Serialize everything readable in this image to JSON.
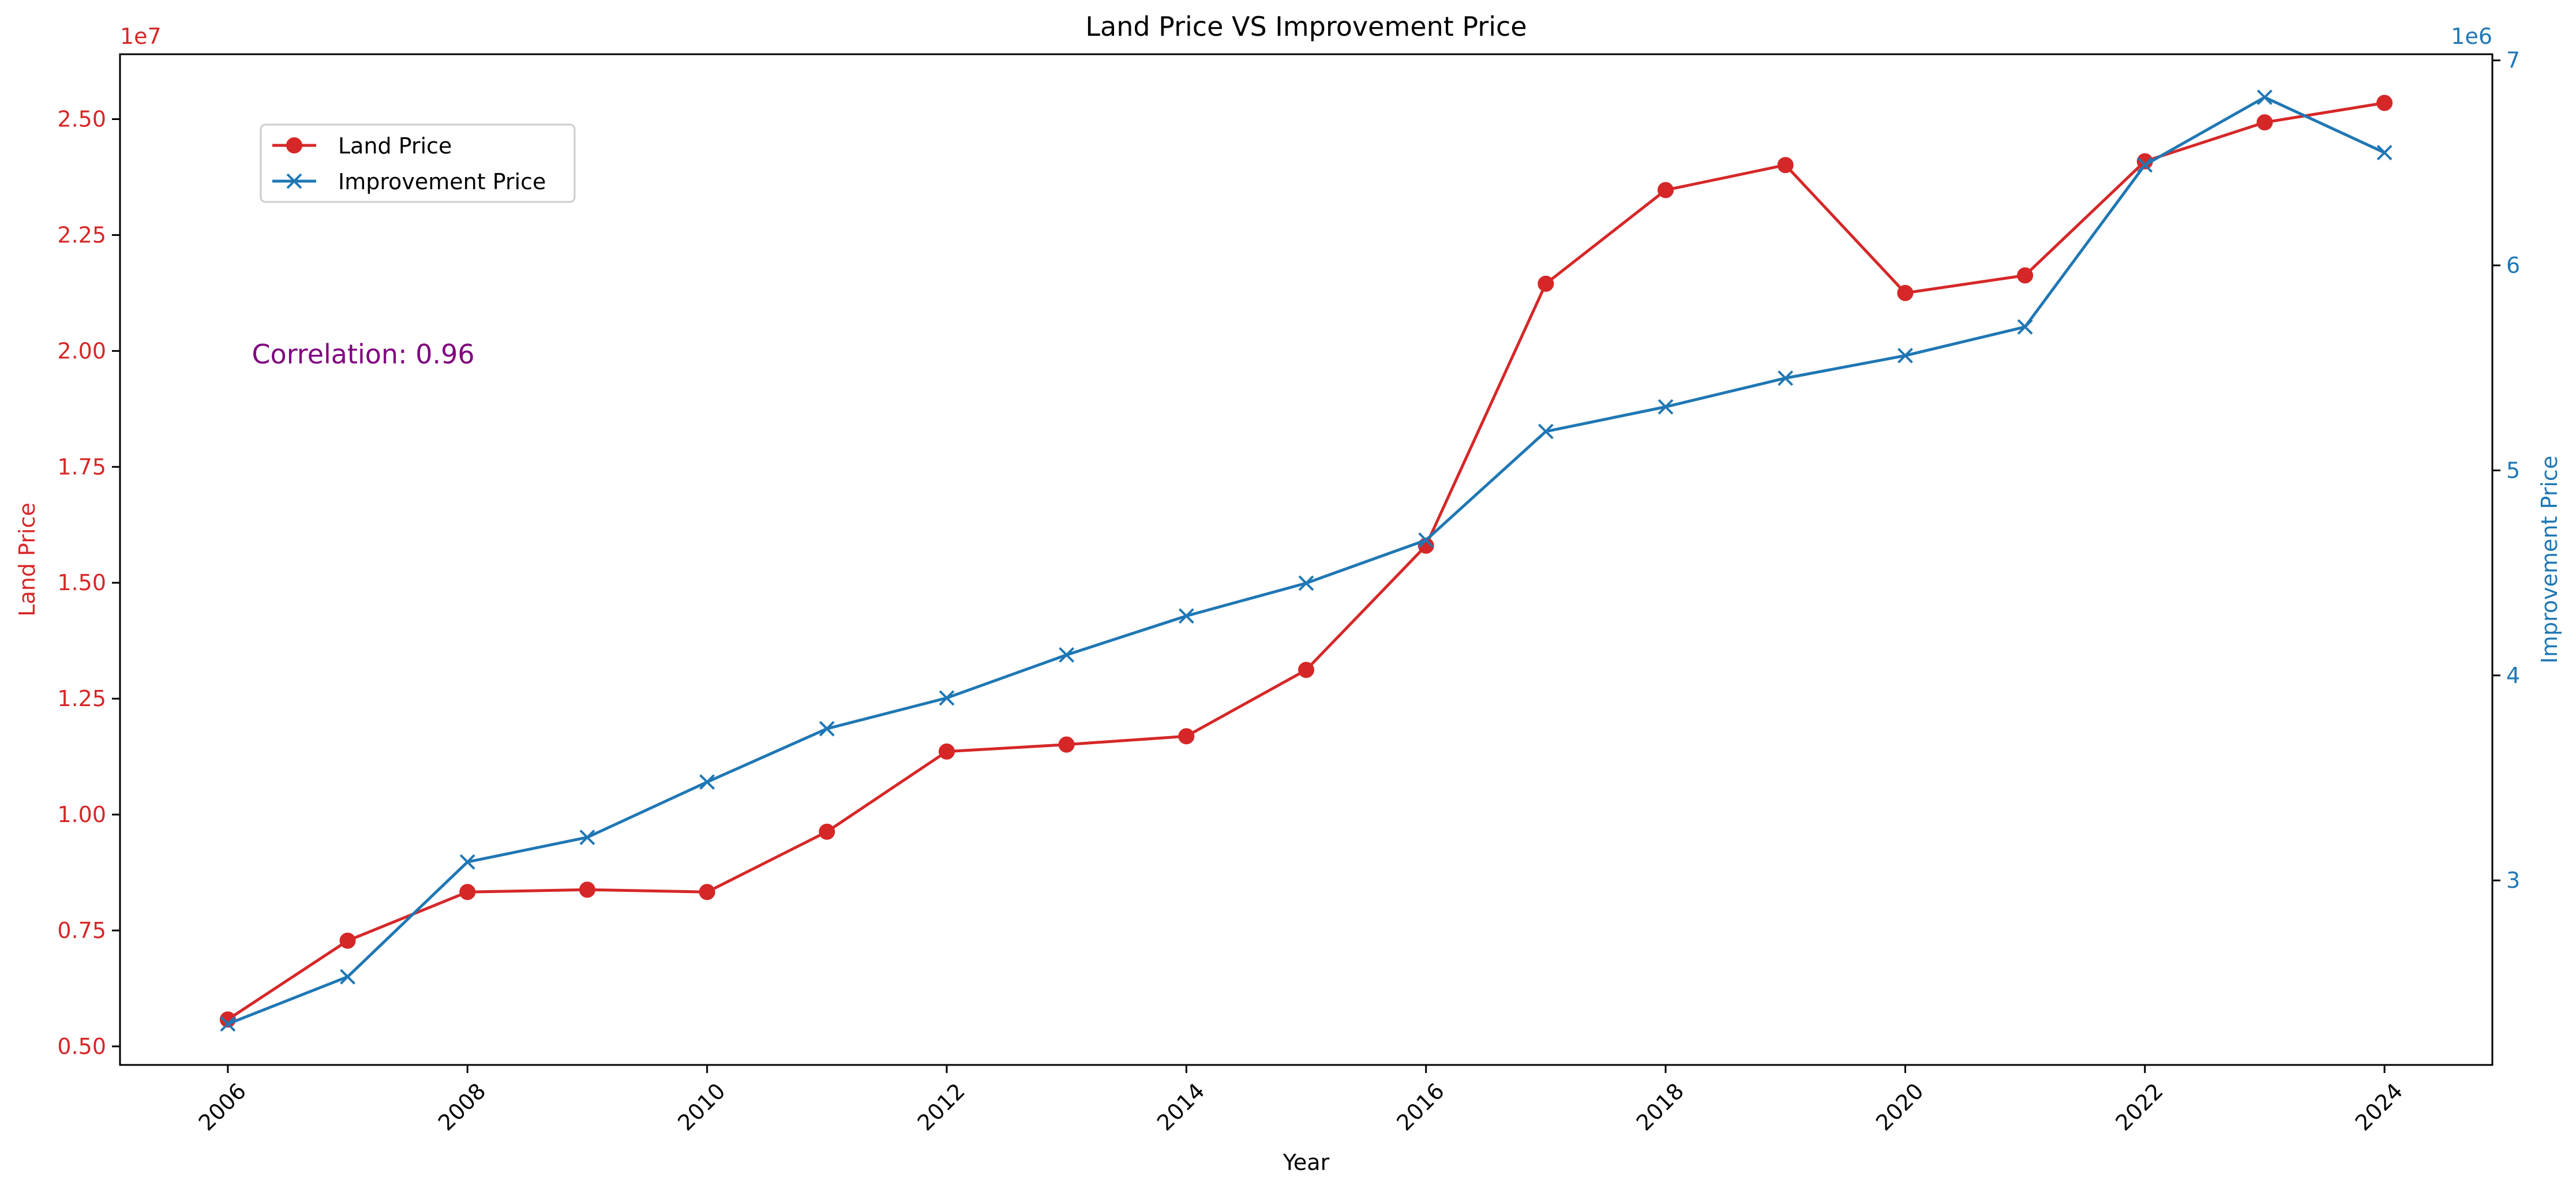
{
  "chart_data": {
    "type": "line",
    "title": "Land Price VS Improvement Price",
    "xlabel": "Year",
    "ylabel_left": "Land Price",
    "ylabel_right": "Improvement Price",
    "x": [
      2006,
      2007,
      2008,
      2009,
      2010,
      2011,
      2012,
      2013,
      2014,
      2015,
      2016,
      2017,
      2018,
      2019,
      2020,
      2021,
      2022,
      2023,
      2024
    ],
    "xlim": [
      2005.1,
      2024.9
    ],
    "xticks": [
      2006,
      2008,
      2010,
      2012,
      2014,
      2016,
      2018,
      2020,
      2022,
      2024
    ],
    "left_axis": {
      "multiplier_label": "1e7",
      "ylim": [
        0.46,
        2.64
      ],
      "ticks": [
        0.5,
        0.75,
        1.0,
        1.25,
        1.5,
        1.75,
        2.0,
        2.25,
        2.5
      ],
      "tick_labels": [
        "0.50",
        "0.75",
        "1.00",
        "1.25",
        "1.50",
        "1.75",
        "2.00",
        "2.25",
        "2.50"
      ],
      "color": "#d62728"
    },
    "right_axis": {
      "multiplier_label": "1e6",
      "ylim": [
        2.1,
        7.03
      ],
      "ticks": [
        3,
        4,
        5,
        6,
        7
      ],
      "tick_labels": [
        "3",
        "4",
        "5",
        "6",
        "7"
      ],
      "color": "#1f77b4"
    },
    "series": [
      {
        "name": "Land Price",
        "axis": "left",
        "marker": "circle",
        "color": "#d62728",
        "values": [
          0.558,
          0.728,
          0.833,
          0.838,
          0.833,
          0.963,
          1.136,
          1.151,
          1.169,
          1.312,
          1.58,
          2.145,
          2.347,
          2.401,
          2.125,
          2.163,
          2.409,
          2.493,
          2.535
        ]
      },
      {
        "name": "Improvement Price",
        "axis": "right",
        "marker": "x",
        "color": "#1f77b4",
        "values": [
          2.3,
          2.53,
          3.09,
          3.21,
          3.48,
          3.74,
          3.89,
          4.1,
          4.29,
          4.45,
          4.66,
          5.19,
          5.31,
          5.45,
          5.56,
          5.7,
          6.49,
          6.82,
          6.55
        ]
      }
    ],
    "legend_position": "top-left",
    "annotation": {
      "text": "Correlation: 0.96",
      "color": "#800080",
      "x": 2006.2,
      "y": 1.993
    },
    "grid": false
  }
}
